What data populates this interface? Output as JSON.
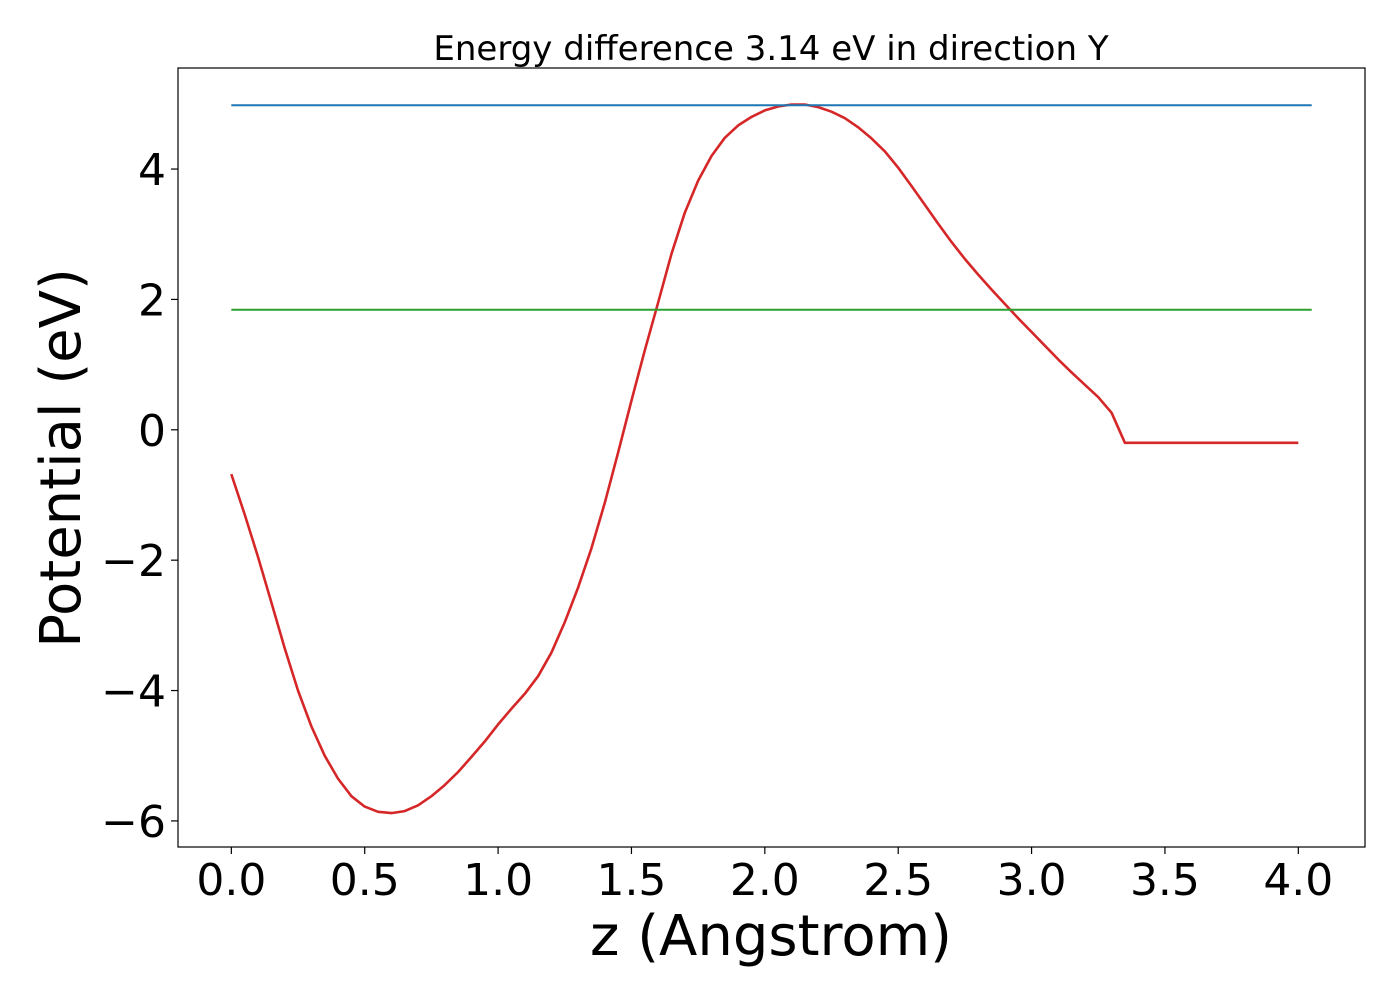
{
  "chart_data": {
    "type": "line",
    "title": "Energy difference 3.14 eV in direction Y",
    "xlabel": "z (Angstrom)",
    "ylabel": "Potential (eV)",
    "xlim": [
      -0.1,
      4.0
    ],
    "ylim": [
      -6.4,
      5.55
    ],
    "xticks": [
      0.0,
      0.5,
      1.0,
      1.5,
      2.0,
      2.5,
      3.0,
      3.5,
      4.0
    ],
    "xtick_labels": [
      "0.0",
      "0.5",
      "1.0",
      "1.5",
      "2.0",
      "2.5",
      "3.0",
      "3.5",
      "4.0"
    ],
    "yticks": [
      -6,
      -4,
      -2,
      0,
      2,
      4
    ],
    "ytick_labels": [
      "−6",
      "−4",
      "−2",
      "0",
      "2",
      "4"
    ],
    "grid": false,
    "legend": "none",
    "series": [
      {
        "color": "#d62728",
        "x": [
          0.0,
          0.05,
          0.1,
          0.15,
          0.2,
          0.25,
          0.3,
          0.35,
          0.4,
          0.45,
          0.5,
          0.55,
          0.6,
          0.65,
          0.7,
          0.75,
          0.8,
          0.85,
          0.9,
          0.95,
          1.0,
          1.05,
          1.1,
          1.15,
          1.2,
          1.25,
          1.3,
          1.35,
          1.4,
          1.45,
          1.5,
          1.55,
          1.6,
          1.65,
          1.7,
          1.75,
          1.8,
          1.85,
          1.9,
          1.95,
          2.0,
          2.05,
          2.1,
          2.15,
          2.2,
          2.25,
          2.3,
          2.35,
          2.4,
          2.45,
          2.5,
          2.55,
          2.6,
          2.65,
          2.7,
          2.75,
          2.8,
          2.85,
          2.9,
          2.95,
          3.0,
          3.05,
          3.1,
          3.15,
          3.2,
          3.25,
          3.3,
          3.35,
          3.4,
          3.45,
          3.5,
          3.55,
          3.6,
          3.65,
          3.7,
          3.75,
          3.8,
          3.85,
          3.9,
          3.95,
          4.0
        ],
        "y": [
          -0.68,
          -1.3,
          -1.95,
          -2.65,
          -3.35,
          -4.0,
          -4.55,
          -5.0,
          -5.35,
          -5.62,
          -5.78,
          -5.86,
          -5.88,
          -5.85,
          -5.76,
          -5.62,
          -5.45,
          -5.25,
          -5.02,
          -4.78,
          -4.52,
          -4.28,
          -4.05,
          -3.78,
          -3.42,
          -2.95,
          -2.42,
          -1.82,
          -1.12,
          -0.35,
          0.45,
          1.22,
          1.95,
          2.7,
          3.33,
          3.82,
          4.2,
          4.48,
          4.67,
          4.8,
          4.9,
          4.96,
          4.99,
          4.99,
          4.95,
          4.88,
          4.78,
          4.64,
          4.47,
          4.27,
          4.02,
          3.74,
          3.45,
          3.16,
          2.88,
          2.62,
          2.38,
          2.15,
          1.93,
          1.71,
          1.5,
          1.29,
          1.08,
          0.88,
          0.69,
          0.5,
          0.26,
          -0.2,
          -0.2,
          -0.2,
          -0.2,
          -0.2,
          -0.2,
          -0.2,
          -0.2,
          -0.2,
          -0.2,
          -0.2,
          -0.2,
          -0.2,
          -0.2
        ]
      },
      {
        "color": "#1f77b4",
        "x": [
          0.0,
          4.05
        ],
        "y": [
          4.98,
          4.98
        ]
      },
      {
        "color": "#2ca02c",
        "x": [
          0.0,
          4.05
        ],
        "y": [
          1.84,
          1.84
        ]
      }
    ]
  }
}
